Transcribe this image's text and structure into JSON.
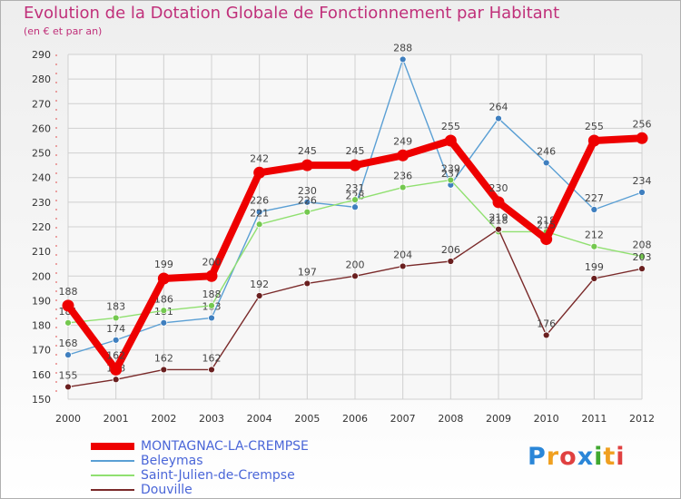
{
  "title": "Evolution de la Dotation Globale de Fonctionnement par Habitant",
  "subtitle": "(en € et par an)",
  "logo_text": "Proxiti",
  "colors": {
    "background": "#ffffff",
    "grid": "#d0d0d0",
    "title": "#c0307a"
  },
  "chart_data": {
    "type": "line",
    "title": "Evolution de la Dotation Globale de Fonctionnement par Habitant",
    "subtitle": "(en € et par an)",
    "xlabel": "",
    "ylabel": "",
    "x": [
      "2000",
      "2001",
      "2002",
      "2003",
      "2004",
      "2005",
      "2006",
      "2007",
      "2008",
      "2009",
      "2010",
      "2011",
      "2012"
    ],
    "ylim": [
      150,
      290
    ],
    "yticks": [
      150,
      160,
      170,
      180,
      190,
      200,
      210,
      220,
      230,
      240,
      250,
      260,
      270,
      280,
      290
    ],
    "grid": true,
    "legend": "bottom-left",
    "series": [
      {
        "name": "Beleymas",
        "color": "#5a9fd4",
        "marker": "#3f7fbf",
        "thick": false,
        "values": [
          168,
          174,
          181,
          183,
          226,
          230,
          228,
          288,
          237,
          264,
          246,
          227,
          234
        ]
      },
      {
        "name": "Saint-Julien-de-Crempse",
        "color": "#90e070",
        "marker": "#74c84f",
        "thick": false,
        "values": [
          181,
          183,
          186,
          188,
          221,
          226,
          231,
          236,
          239,
          218,
          218,
          212,
          208
        ]
      },
      {
        "name": "Douville",
        "color": "#7a2a2a",
        "marker": "#6a1f1f",
        "thick": false,
        "values": [
          155,
          158,
          162,
          162,
          192,
          197,
          200,
          204,
          206,
          219,
          176,
          199,
          203
        ]
      },
      {
        "name": "MONTAGNAC-LA-CREMPSE",
        "color": "#ee0000",
        "marker": "#ee0000",
        "thick": true,
        "values": [
          188,
          162,
          199,
          200,
          242,
          245,
          245,
          249,
          255,
          230,
          215,
          255,
          256
        ]
      }
    ]
  }
}
